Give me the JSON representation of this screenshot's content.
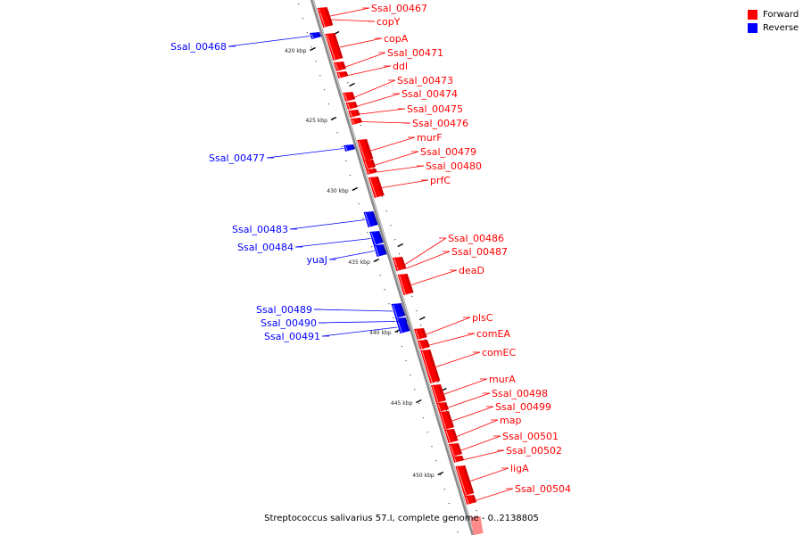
{
  "legend": {
    "items": [
      {
        "label": "Forward",
        "color": "#ff0000"
      },
      {
        "label": "Reverse",
        "color": "#0000ff"
      }
    ]
  },
  "caption": "Streptococcus salivarius 57.I, complete genome - 0..2138805",
  "ticks": [
    "420 kbp",
    "425 kbp",
    "430 kbp",
    "435 kbp",
    "440 kbp",
    "445 kbp",
    "450 kbp"
  ],
  "genes": [
    {
      "name": "Ssal_00467",
      "strand": "forward"
    },
    {
      "name": "copY",
      "strand": "forward"
    },
    {
      "name": "copA",
      "strand": "forward"
    },
    {
      "name": "Ssal_00468",
      "strand": "reverse"
    },
    {
      "name": "Ssal_00471",
      "strand": "forward"
    },
    {
      "name": "ddl",
      "strand": "forward"
    },
    {
      "name": "Ssal_00473",
      "strand": "forward"
    },
    {
      "name": "Ssal_00474",
      "strand": "forward"
    },
    {
      "name": "Ssal_00475",
      "strand": "forward"
    },
    {
      "name": "Ssal_00476",
      "strand": "forward"
    },
    {
      "name": "murF",
      "strand": "forward"
    },
    {
      "name": "Ssal_00477",
      "strand": "reverse"
    },
    {
      "name": "Ssal_00479",
      "strand": "forward"
    },
    {
      "name": "Ssal_00480",
      "strand": "forward"
    },
    {
      "name": "prfC",
      "strand": "forward"
    },
    {
      "name": "Ssal_00483",
      "strand": "reverse"
    },
    {
      "name": "Ssal_00484",
      "strand": "reverse"
    },
    {
      "name": "yuaJ",
      "strand": "reverse"
    },
    {
      "name": "Ssal_00486",
      "strand": "forward"
    },
    {
      "name": "Ssal_00487",
      "strand": "forward"
    },
    {
      "name": "deaD",
      "strand": "forward"
    },
    {
      "name": "Ssal_00489",
      "strand": "reverse"
    },
    {
      "name": "Ssal_00490",
      "strand": "reverse"
    },
    {
      "name": "Ssal_00491",
      "strand": "reverse"
    },
    {
      "name": "plsC",
      "strand": "forward"
    },
    {
      "name": "comEA",
      "strand": "forward"
    },
    {
      "name": "comEC",
      "strand": "forward"
    },
    {
      "name": "murA",
      "strand": "forward"
    },
    {
      "name": "Ssal_00498",
      "strand": "forward"
    },
    {
      "name": "Ssal_00499",
      "strand": "forward"
    },
    {
      "name": "map",
      "strand": "forward"
    },
    {
      "name": "Ssal_00501",
      "strand": "forward"
    },
    {
      "name": "Ssal_00502",
      "strand": "forward"
    },
    {
      "name": "ligA",
      "strand": "forward"
    },
    {
      "name": "Ssal_00504",
      "strand": "forward"
    }
  ]
}
